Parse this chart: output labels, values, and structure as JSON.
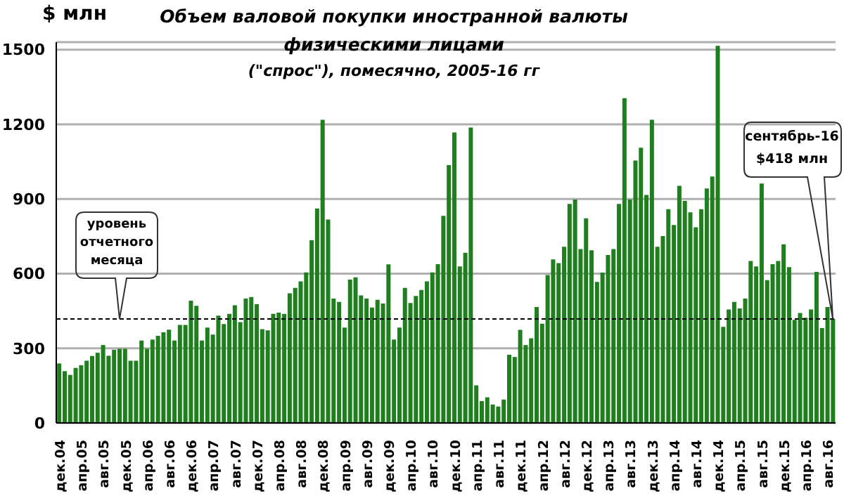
{
  "chart_data": {
    "type": "bar",
    "title": "Объем валовой покупки иностранной валюты физическими лицами",
    "subtitle": "(\"спрос\"), помесячно, 2005-16 гг",
    "ylabel": "$ млн",
    "categories": [
      "дек.04",
      null,
      null,
      null,
      "апр.05",
      null,
      null,
      null,
      "авг.05",
      null,
      null,
      null,
      "дек.05",
      null,
      null,
      null,
      "апр.06",
      null,
      null,
      null,
      "авг.06",
      null,
      null,
      null,
      "дек.06",
      null,
      null,
      null,
      "апр.07",
      null,
      null,
      null,
      "авг.07",
      null,
      null,
      null,
      "дек.07",
      null,
      null,
      null,
      "апр.08",
      null,
      null,
      null,
      "авг.08",
      null,
      null,
      null,
      "дек.08",
      null,
      null,
      null,
      "апр.09",
      null,
      null,
      null,
      "авг.09",
      null,
      null,
      null,
      "дек.09",
      null,
      null,
      null,
      "апр.10",
      null,
      null,
      null,
      "авг.10",
      null,
      null,
      null,
      "дек.10",
      null,
      null,
      null,
      "апр.11",
      null,
      null,
      null,
      "авг.11",
      null,
      null,
      null,
      "дек.11",
      null,
      null,
      null,
      "апр.12",
      null,
      null,
      null,
      "авг.12",
      null,
      null,
      null,
      "дек.12",
      null,
      null,
      null,
      "апр.13",
      null,
      null,
      null,
      "авг.13",
      null,
      null,
      null,
      "дек.13",
      null,
      null,
      null,
      "апр.14",
      null,
      null,
      null,
      "авг.14",
      null,
      null,
      null,
      "дек.14",
      null,
      null,
      null,
      "апр.15",
      null,
      null,
      null,
      "авг.15",
      null,
      null,
      null,
      "дек.15",
      null,
      null,
      null,
      "апр.16",
      null,
      null,
      null,
      "авг.16",
      null
    ],
    "values": [
      239,
      208,
      193,
      221,
      232,
      250,
      269,
      282,
      313,
      270,
      294,
      298,
      298,
      250,
      250,
      331,
      298,
      335,
      350,
      364,
      375,
      331,
      394,
      394,
      491,
      471,
      331,
      383,
      355,
      431,
      397,
      438,
      473,
      405,
      500,
      506,
      477,
      377,
      372,
      438,
      443,
      438,
      521,
      543,
      569,
      605,
      734,
      862,
      1218,
      817,
      500,
      486,
      383,
      576,
      585,
      512,
      500,
      464,
      495,
      480,
      637,
      335,
      383,
      543,
      482,
      510,
      534,
      569,
      605,
      638,
      832,
      1036,
      1167,
      629,
      684,
      1187,
      151,
      88,
      103,
      74,
      66,
      94,
      274,
      265,
      374,
      313,
      340,
      466,
      399,
      594,
      657,
      642,
      708,
      880,
      898,
      699,
      822,
      694,
      567,
      604,
      675,
      699,
      880,
      1305,
      898,
      1054,
      1106,
      916,
      1218,
      708,
      751,
      859,
      795,
      953,
      892,
      846,
      786,
      859,
      942,
      990,
      1515,
      386,
      456,
      486,
      460,
      500,
      651,
      629,
      962,
      574,
      638,
      651,
      718,
      626,
      414,
      442,
      423,
      456,
      607,
      381,
      466,
      418
    ],
    "color": "#1f7f1f",
    "ylim": [
      0,
      1530
    ],
    "yticks": [
      0,
      300,
      600,
      900,
      1200,
      1500
    ],
    "grid": "y",
    "ref_lines": [
      {
        "axis": "y",
        "value": 418,
        "label": "уровень отчетного месяца",
        "color": "#000000",
        "line_style": "dashed"
      }
    ],
    "annotations": [
      "сентябрь-16 $418 млн"
    ]
  }
}
